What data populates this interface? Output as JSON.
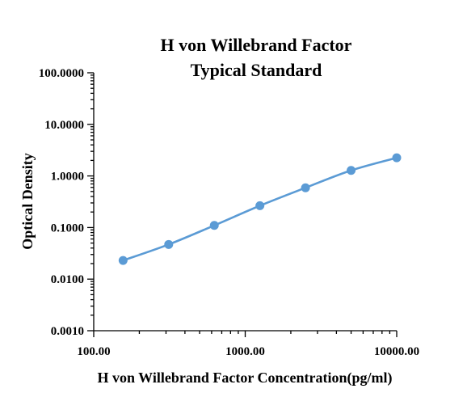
{
  "chart_data": {
    "type": "line",
    "title_lines": [
      "H von Willebrand Factor",
      "Typical Standard"
    ],
    "xlabel": "H von Willebrand Factor Concentration(pg/ml)",
    "ylabel": "Optical Density",
    "x_scale": "log",
    "y_scale": "log",
    "xlim": [
      100,
      10000
    ],
    "ylim": [
      0.001,
      100
    ],
    "x_tick_labels": [
      "100.00",
      "1000.00",
      "10000.00"
    ],
    "y_tick_labels": [
      "100.0000",
      "10.0000",
      "1.0000",
      "0.1000",
      "0.0100",
      "0.0010"
    ],
    "grid": false,
    "series": [
      {
        "color": "#5b9bd5",
        "x": [
          156.25,
          312.5,
          625,
          1250,
          2500,
          5000,
          10000
        ],
        "y": [
          0.023,
          0.047,
          0.11,
          0.265,
          0.59,
          1.28,
          2.25
        ]
      }
    ]
  }
}
